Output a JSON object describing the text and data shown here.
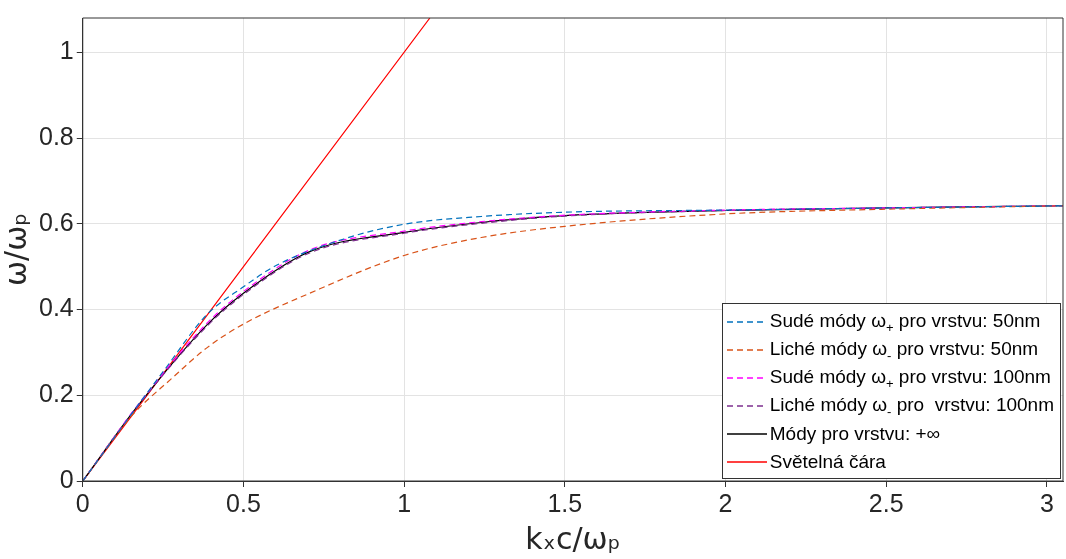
{
  "chart_data": {
    "type": "line",
    "xlabel": "kₓc/ωₚ",
    "ylabel": "ω/ωₚ",
    "xlim": [
      0,
      3.05
    ],
    "ylim": [
      0,
      1.08
    ],
    "xticks": [
      0,
      0.5,
      1,
      1.5,
      2,
      2.5,
      3
    ],
    "yticks": [
      0,
      0.2,
      0.4,
      0.6,
      0.8,
      1
    ],
    "grid": true,
    "legend": "bottom right",
    "marker": "none",
    "series": [
      {
        "name": "Sudé módy ω$_{+}$ pro vrstvu: 50nm",
        "color": "#0072bd",
        "line_style": "dashed",
        "x": [
          0,
          0.17,
          0.25,
          0.386,
          0.5,
          0.6,
          0.81,
          1,
          1.24,
          1.5,
          2,
          2.5,
          3.05
        ],
        "values": [
          0,
          0.175,
          0.255,
          0.388,
          0.453,
          0.502,
          0.564,
          0.599,
          0.617,
          0.627,
          0.632,
          0.637,
          0.642
        ]
      },
      {
        "name": "Liché módy ω$_{-}$ pro vrstvu: 50nm",
        "color": "#d95319",
        "line_style": "dashed",
        "x": [
          0,
          0.15,
          0.278,
          0.385,
          0.5,
          0.706,
          1,
          1.24,
          1.5,
          2,
          2.5,
          3.05
        ],
        "values": [
          0,
          0.15,
          0.24,
          0.31,
          0.366,
          0.438,
          0.526,
          0.568,
          0.594,
          0.623,
          0.634,
          0.642
        ]
      },
      {
        "name": "Sudé módy ω$_{+}$ pro vrstvu: 100nm",
        "color": "#ff00ff",
        "line_style": "dashed",
        "x": [
          0,
          0.17,
          0.385,
          0.5,
          0.706,
          1,
          1.24,
          1.5,
          2,
          2.5,
          3.05
        ],
        "values": [
          0,
          0.176,
          0.367,
          0.442,
          0.539,
          0.583,
          0.605,
          0.62,
          0.632,
          0.637,
          0.642
        ]
      },
      {
        "name": "Liché módy ω$_{-}$ pro  vrstvu: 100nm",
        "color": "#7e2f8e",
        "line_style": "dashed",
        "x": [
          0,
          0.17,
          0.385,
          0.5,
          0.706,
          1,
          1.24,
          1.5,
          2,
          2.5,
          3.05
        ],
        "values": [
          0,
          0.174,
          0.36,
          0.435,
          0.532,
          0.578,
          0.601,
          0.618,
          0.631,
          0.637,
          0.642
        ]
      },
      {
        "name": "Módy pro vrstvu: +∞",
        "color": "#000000",
        "line_style": "solid",
        "x": [
          0,
          0.171,
          0.385,
          0.5,
          0.706,
          1,
          1.24,
          1.5,
          2,
          2.5,
          3.05
        ],
        "values": [
          0,
          0.175,
          0.363,
          0.438,
          0.535,
          0.58,
          0.603,
          0.619,
          0.631,
          0.637,
          0.642
        ]
      },
      {
        "name": "Světelná čára",
        "color": "#ff0000",
        "line_style": "solid",
        "x": [
          0,
          1.08
        ],
        "values": [
          0,
          1.08
        ]
      }
    ]
  }
}
